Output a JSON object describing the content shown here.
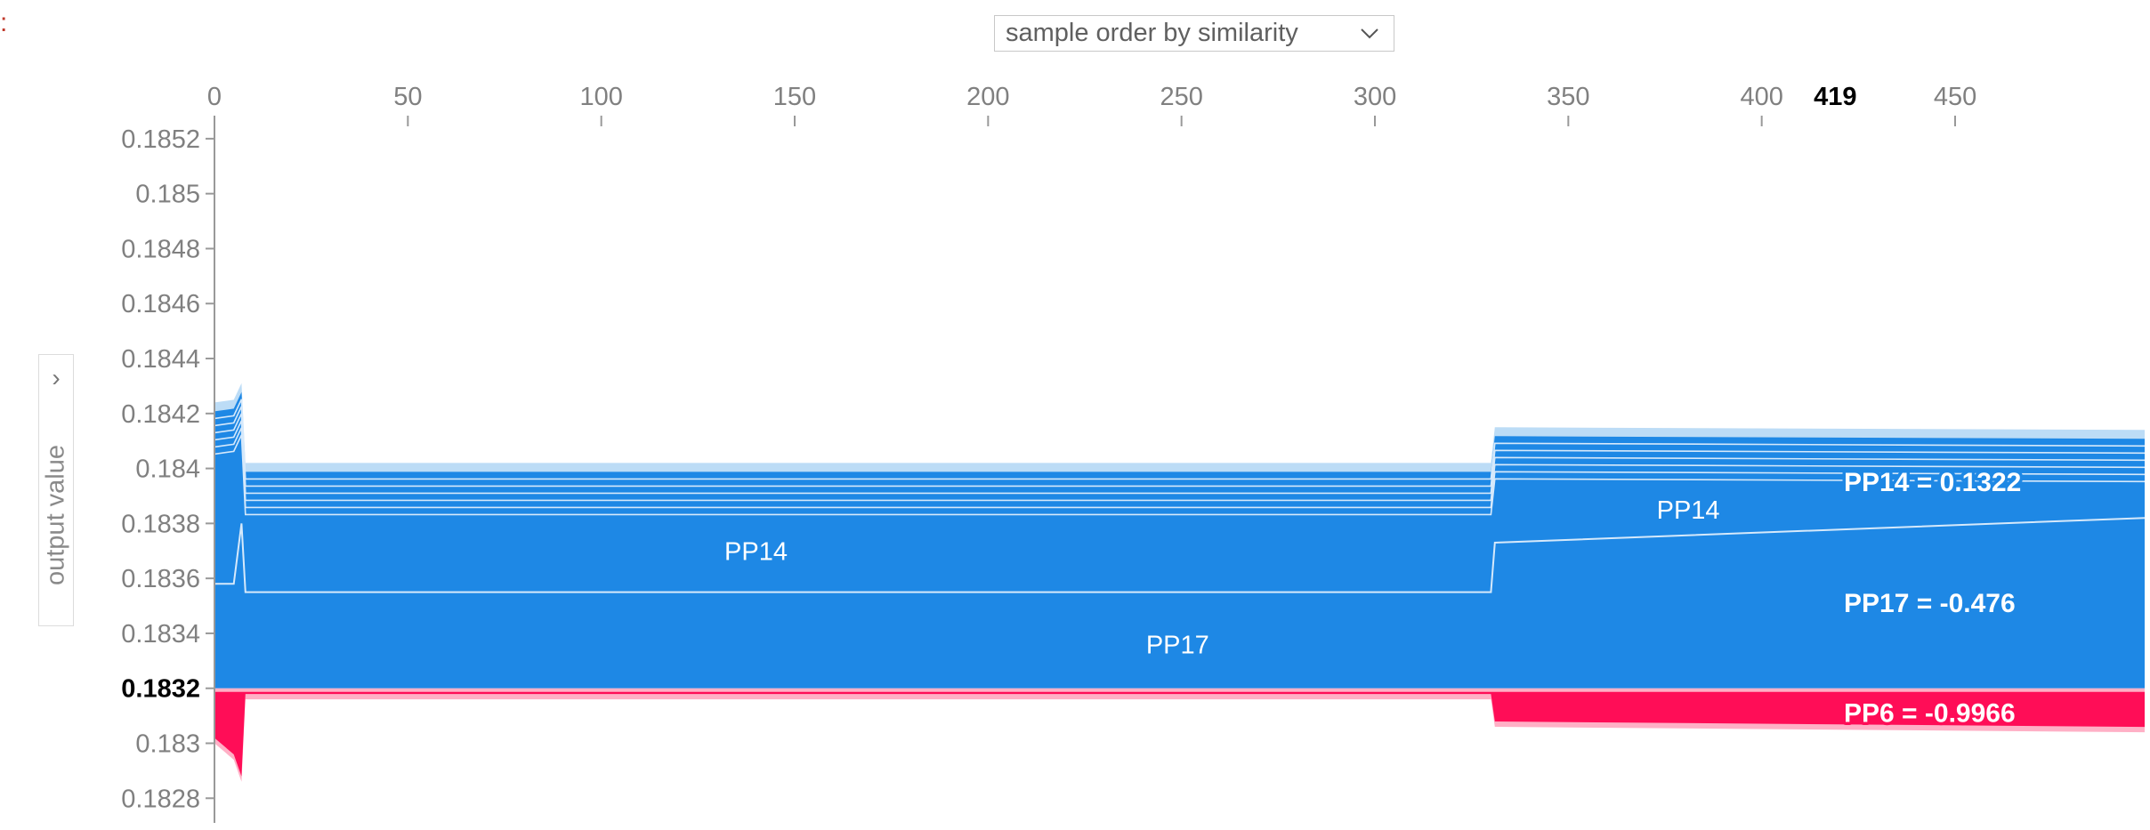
{
  "controls": {
    "order_select": {
      "value": "sample order by similarity",
      "chevron_icon": "chevron-down-icon"
    },
    "side_panel": {
      "toggle_icon": "chevron-right-icon",
      "axis_label": "output value"
    }
  },
  "colors": {
    "positive": "#ff0d57",
    "negative": "#1e88e5",
    "positive_light": "#ffb0c6",
    "negative_light": "#bcdcf6"
  },
  "chart_data": {
    "type": "area",
    "x_ticks": [
      "0",
      "50",
      "100",
      "150",
      "200",
      "250",
      "300",
      "350",
      "400",
      "419",
      "450"
    ],
    "x_tick_values": [
      0,
      50,
      100,
      150,
      200,
      250,
      300,
      350,
      400,
      419,
      450
    ],
    "highlight_x": 419,
    "xlim": [
      0,
      499
    ],
    "y_ticks": [
      "0.1852",
      "0.185",
      "0.1848",
      "0.1846",
      "0.1844",
      "0.1842",
      "0.184",
      "0.1838",
      "0.1836",
      "0.1834",
      "0.1832",
      "0.183",
      "0.1828"
    ],
    "y_tick_values": [
      0.1852,
      0.185,
      0.1848,
      0.1846,
      0.1844,
      0.1842,
      0.184,
      0.1838,
      0.1836,
      0.1834,
      0.1832,
      0.183,
      0.1828
    ],
    "base_value": 0.1832,
    "ylim": [
      0.18272,
      0.1853
    ],
    "xlabel": "",
    "ylabel": "output value",
    "segments": [
      {
        "x": [
          0,
          5,
          7,
          8,
          330,
          331,
          499
        ],
        "top": [
          0.18424,
          0.18425,
          0.18431,
          0.18402,
          0.18402,
          0.18415,
          0.18414
        ],
        "pp17_top": [
          0.18358,
          0.18358,
          0.1838,
          0.18355,
          0.18355,
          0.18373,
          0.18382
        ],
        "bottom": [
          0.183,
          0.18294,
          0.18286,
          0.18316,
          0.18316,
          0.18306,
          0.18304
        ]
      }
    ],
    "series": [
      {
        "name": "PP17",
        "direction": "lower"
      },
      {
        "name": "PP14",
        "direction": "lower"
      },
      {
        "name": "PP6",
        "direction": "higher"
      }
    ],
    "band_labels": [
      {
        "text": "PP14",
        "x": 140,
        "y": 0.1837
      },
      {
        "text": "PP17",
        "x": 249,
        "y": 0.18336
      },
      {
        "text": "PP14",
        "x": 381,
        "y": 0.18385
      }
    ],
    "feature_labels": [
      {
        "text": "PP14 = 0.1322",
        "y": 0.18395,
        "kind": "negative"
      },
      {
        "text": "PP17 = -0.476",
        "y": 0.18351,
        "kind": "negative"
      },
      {
        "text": "PP6 = -0.9966",
        "y": 0.18311,
        "kind": "positive"
      }
    ]
  }
}
